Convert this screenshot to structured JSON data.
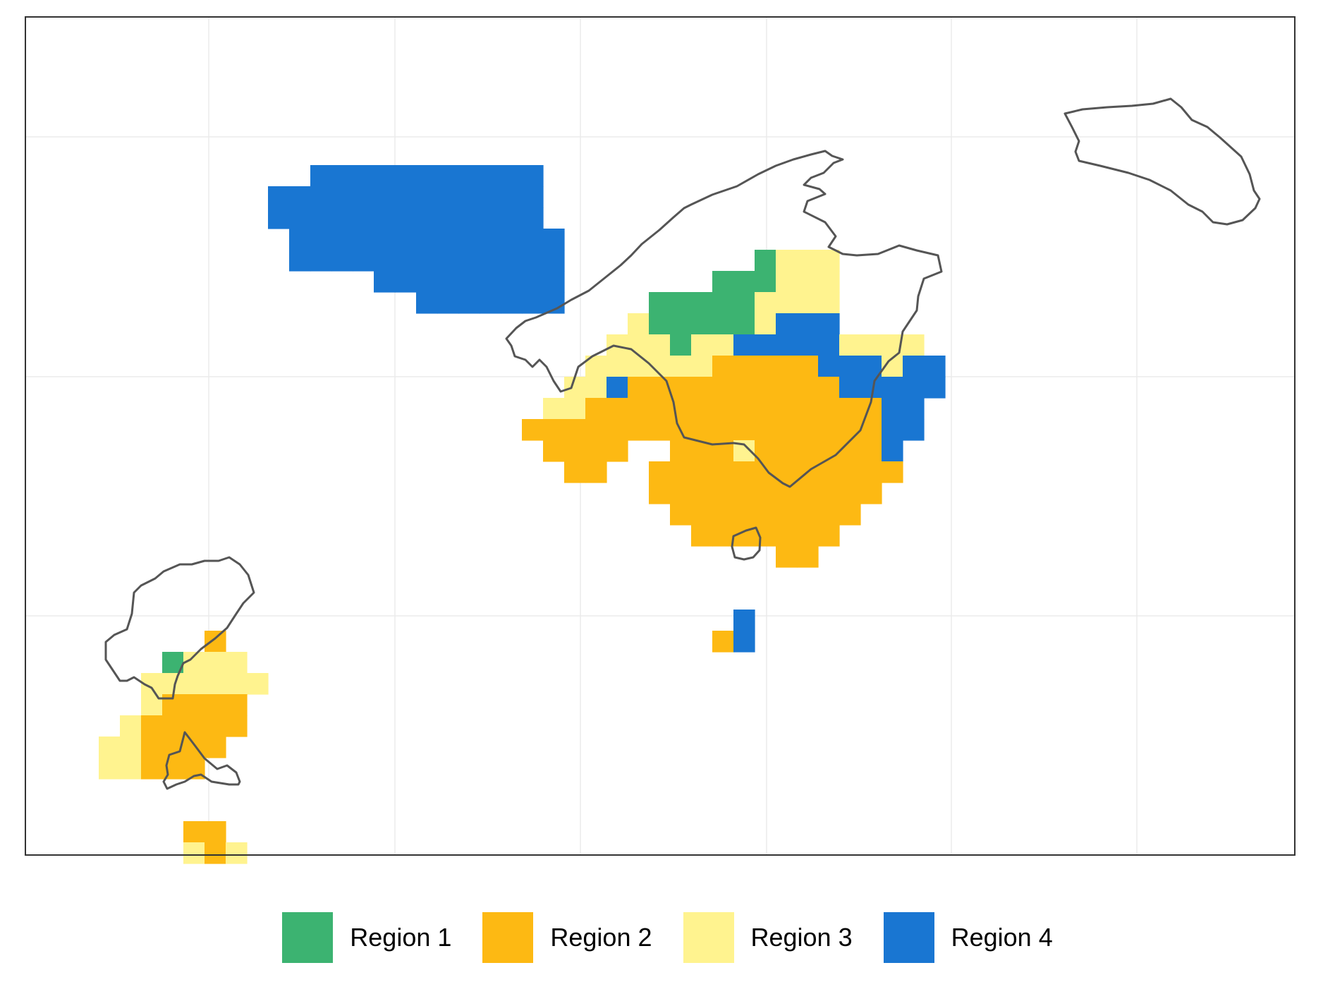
{
  "map": {
    "region_colors": {
      "1": "#3CB371",
      "2": "#FDB913",
      "3": "#FFF38F",
      "4": "#1976D2"
    },
    "outline_color": "#555555",
    "grid_color": "#ebebeb",
    "cells": [
      [
        14,
        7,
        4
      ],
      [
        15,
        7,
        4
      ],
      [
        16,
        7,
        4
      ],
      [
        17,
        7,
        4
      ],
      [
        18,
        7,
        4
      ],
      [
        19,
        7,
        4
      ],
      [
        20,
        7,
        4
      ],
      [
        21,
        7,
        4
      ],
      [
        22,
        7,
        4
      ],
      [
        23,
        7,
        4
      ],
      [
        24,
        7,
        4
      ],
      [
        12,
        8,
        4
      ],
      [
        13,
        8,
        4
      ],
      [
        14,
        8,
        4
      ],
      [
        15,
        8,
        4
      ],
      [
        16,
        8,
        4
      ],
      [
        17,
        8,
        4
      ],
      [
        18,
        8,
        4
      ],
      [
        19,
        8,
        4
      ],
      [
        20,
        8,
        4
      ],
      [
        21,
        8,
        4
      ],
      [
        22,
        8,
        4
      ],
      [
        23,
        8,
        4
      ],
      [
        24,
        8,
        4
      ],
      [
        12,
        9,
        4
      ],
      [
        13,
        9,
        4
      ],
      [
        14,
        9,
        4
      ],
      [
        15,
        9,
        4
      ],
      [
        16,
        9,
        4
      ],
      [
        17,
        9,
        4
      ],
      [
        18,
        9,
        4
      ],
      [
        19,
        9,
        4
      ],
      [
        20,
        9,
        4
      ],
      [
        21,
        9,
        4
      ],
      [
        22,
        9,
        4
      ],
      [
        23,
        9,
        4
      ],
      [
        24,
        9,
        4
      ],
      [
        13,
        10,
        4
      ],
      [
        14,
        10,
        4
      ],
      [
        15,
        10,
        4
      ],
      [
        16,
        10,
        4
      ],
      [
        17,
        10,
        4
      ],
      [
        18,
        10,
        4
      ],
      [
        19,
        10,
        4
      ],
      [
        20,
        10,
        4
      ],
      [
        21,
        10,
        4
      ],
      [
        22,
        10,
        4
      ],
      [
        23,
        10,
        4
      ],
      [
        24,
        10,
        4
      ],
      [
        25,
        10,
        4
      ],
      [
        13,
        11,
        4
      ],
      [
        14,
        11,
        4
      ],
      [
        15,
        11,
        4
      ],
      [
        16,
        11,
        4
      ],
      [
        17,
        11,
        4
      ],
      [
        18,
        11,
        4
      ],
      [
        19,
        11,
        4
      ],
      [
        20,
        11,
        4
      ],
      [
        21,
        11,
        4
      ],
      [
        22,
        11,
        4
      ],
      [
        23,
        11,
        4
      ],
      [
        24,
        11,
        4
      ],
      [
        25,
        11,
        4
      ],
      [
        17,
        12,
        4
      ],
      [
        18,
        12,
        4
      ],
      [
        19,
        12,
        4
      ],
      [
        20,
        12,
        4
      ],
      [
        21,
        12,
        4
      ],
      [
        22,
        12,
        4
      ],
      [
        23,
        12,
        4
      ],
      [
        24,
        12,
        4
      ],
      [
        25,
        12,
        4
      ],
      [
        19,
        13,
        4
      ],
      [
        20,
        13,
        4
      ],
      [
        21,
        13,
        4
      ],
      [
        22,
        13,
        4
      ],
      [
        23,
        13,
        4
      ],
      [
        24,
        13,
        4
      ],
      [
        25,
        13,
        4
      ],
      [
        35,
        11,
        1
      ],
      [
        36,
        11,
        3
      ],
      [
        37,
        11,
        3
      ],
      [
        38,
        11,
        3
      ],
      [
        33,
        12,
        1
      ],
      [
        34,
        12,
        1
      ],
      [
        35,
        12,
        1
      ],
      [
        36,
        12,
        3
      ],
      [
        37,
        12,
        3
      ],
      [
        38,
        12,
        3
      ],
      [
        30,
        13,
        1
      ],
      [
        31,
        13,
        1
      ],
      [
        32,
        13,
        1
      ],
      [
        33,
        13,
        1
      ],
      [
        34,
        13,
        1
      ],
      [
        35,
        13,
        3
      ],
      [
        36,
        13,
        3
      ],
      [
        37,
        13,
        3
      ],
      [
        38,
        13,
        3
      ],
      [
        29,
        14,
        3
      ],
      [
        30,
        14,
        1
      ],
      [
        31,
        14,
        1
      ],
      [
        32,
        14,
        1
      ],
      [
        33,
        14,
        1
      ],
      [
        34,
        14,
        1
      ],
      [
        35,
        14,
        3
      ],
      [
        36,
        14,
        4
      ],
      [
        37,
        14,
        4
      ],
      [
        38,
        14,
        4
      ],
      [
        28,
        15,
        3
      ],
      [
        29,
        15,
        3
      ],
      [
        30,
        15,
        3
      ],
      [
        31,
        15,
        1
      ],
      [
        32,
        15,
        3
      ],
      [
        33,
        15,
        3
      ],
      [
        34,
        15,
        4
      ],
      [
        35,
        15,
        4
      ],
      [
        36,
        15,
        4
      ],
      [
        37,
        15,
        4
      ],
      [
        38,
        15,
        4
      ],
      [
        39,
        15,
        3
      ],
      [
        40,
        15,
        3
      ],
      [
        41,
        15,
        3
      ],
      [
        42,
        15,
        3
      ],
      [
        27,
        16,
        3
      ],
      [
        28,
        16,
        3
      ],
      [
        29,
        16,
        3
      ],
      [
        30,
        16,
        3
      ],
      [
        31,
        16,
        3
      ],
      [
        32,
        16,
        3
      ],
      [
        33,
        16,
        2
      ],
      [
        34,
        16,
        2
      ],
      [
        35,
        16,
        2
      ],
      [
        36,
        16,
        2
      ],
      [
        37,
        16,
        2
      ],
      [
        38,
        16,
        4
      ],
      [
        39,
        16,
        4
      ],
      [
        40,
        16,
        4
      ],
      [
        41,
        16,
        3
      ],
      [
        42,
        16,
        4
      ],
      [
        43,
        16,
        4
      ],
      [
        26,
        17,
        3
      ],
      [
        27,
        17,
        3
      ],
      [
        28,
        17,
        4
      ],
      [
        29,
        17,
        2
      ],
      [
        30,
        17,
        2
      ],
      [
        31,
        17,
        2
      ],
      [
        32,
        17,
        2
      ],
      [
        33,
        17,
        2
      ],
      [
        34,
        17,
        2
      ],
      [
        35,
        17,
        2
      ],
      [
        36,
        17,
        2
      ],
      [
        37,
        17,
        2
      ],
      [
        38,
        17,
        2
      ],
      [
        39,
        17,
        4
      ],
      [
        40,
        17,
        4
      ],
      [
        41,
        17,
        4
      ],
      [
        42,
        17,
        4
      ],
      [
        43,
        17,
        4
      ],
      [
        25,
        18,
        3
      ],
      [
        26,
        18,
        3
      ],
      [
        27,
        18,
        2
      ],
      [
        28,
        18,
        2
      ],
      [
        29,
        18,
        2
      ],
      [
        30,
        18,
        2
      ],
      [
        31,
        18,
        2
      ],
      [
        32,
        18,
        2
      ],
      [
        33,
        18,
        2
      ],
      [
        34,
        18,
        2
      ],
      [
        35,
        18,
        2
      ],
      [
        36,
        18,
        2
      ],
      [
        37,
        18,
        2
      ],
      [
        38,
        18,
        2
      ],
      [
        39,
        18,
        2
      ],
      [
        40,
        18,
        2
      ],
      [
        41,
        18,
        4
      ],
      [
        42,
        18,
        4
      ],
      [
        24,
        19,
        2
      ],
      [
        25,
        19,
        2
      ],
      [
        26,
        19,
        2
      ],
      [
        27,
        19,
        2
      ],
      [
        28,
        19,
        2
      ],
      [
        29,
        19,
        2
      ],
      [
        30,
        19,
        2
      ],
      [
        31,
        19,
        2
      ],
      [
        32,
        19,
        2
      ],
      [
        33,
        19,
        2
      ],
      [
        34,
        19,
        2
      ],
      [
        35,
        19,
        2
      ],
      [
        36,
        19,
        2
      ],
      [
        37,
        19,
        2
      ],
      [
        38,
        19,
        2
      ],
      [
        39,
        19,
        2
      ],
      [
        40,
        19,
        2
      ],
      [
        41,
        19,
        4
      ],
      [
        42,
        19,
        4
      ],
      [
        25,
        20,
        2
      ],
      [
        26,
        20,
        2
      ],
      [
        27,
        20,
        2
      ],
      [
        28,
        20,
        2
      ],
      [
        31,
        20,
        2
      ],
      [
        32,
        20,
        2
      ],
      [
        33,
        20,
        2
      ],
      [
        34,
        20,
        3
      ],
      [
        35,
        20,
        2
      ],
      [
        36,
        20,
        2
      ],
      [
        37,
        20,
        2
      ],
      [
        38,
        20,
        2
      ],
      [
        39,
        20,
        2
      ],
      [
        40,
        20,
        2
      ],
      [
        41,
        20,
        4
      ],
      [
        26,
        21,
        2
      ],
      [
        27,
        21,
        2
      ],
      [
        30,
        21,
        2
      ],
      [
        31,
        21,
        2
      ],
      [
        32,
        21,
        2
      ],
      [
        33,
        21,
        2
      ],
      [
        34,
        21,
        2
      ],
      [
        35,
        21,
        2
      ],
      [
        36,
        21,
        2
      ],
      [
        37,
        21,
        2
      ],
      [
        38,
        21,
        2
      ],
      [
        39,
        21,
        2
      ],
      [
        40,
        21,
        2
      ],
      [
        41,
        21,
        2
      ],
      [
        30,
        22,
        2
      ],
      [
        31,
        22,
        2
      ],
      [
        32,
        22,
        2
      ],
      [
        33,
        22,
        2
      ],
      [
        34,
        22,
        2
      ],
      [
        35,
        22,
        2
      ],
      [
        36,
        22,
        2
      ],
      [
        37,
        22,
        2
      ],
      [
        38,
        22,
        2
      ],
      [
        39,
        22,
        2
      ],
      [
        40,
        22,
        2
      ],
      [
        31,
        23,
        2
      ],
      [
        32,
        23,
        2
      ],
      [
        33,
        23,
        2
      ],
      [
        34,
        23,
        2
      ],
      [
        35,
        23,
        2
      ],
      [
        36,
        23,
        2
      ],
      [
        37,
        23,
        2
      ],
      [
        38,
        23,
        2
      ],
      [
        39,
        23,
        2
      ],
      [
        32,
        24,
        2
      ],
      [
        33,
        24,
        2
      ],
      [
        34,
        24,
        2
      ],
      [
        35,
        24,
        2
      ],
      [
        36,
        24,
        2
      ],
      [
        37,
        24,
        2
      ],
      [
        38,
        24,
        2
      ],
      [
        36,
        25,
        2
      ],
      [
        37,
        25,
        2
      ],
      [
        34,
        28,
        4
      ],
      [
        33,
        29,
        2
      ],
      [
        34,
        29,
        4
      ],
      [
        9,
        29,
        2
      ],
      [
        7,
        30,
        1
      ],
      [
        8,
        30,
        3
      ],
      [
        9,
        30,
        3
      ],
      [
        10,
        30,
        3
      ],
      [
        6,
        31,
        3
      ],
      [
        7,
        31,
        3
      ],
      [
        8,
        31,
        3
      ],
      [
        9,
        31,
        3
      ],
      [
        10,
        31,
        3
      ],
      [
        11,
        31,
        3
      ],
      [
        6,
        32,
        3
      ],
      [
        7,
        32,
        2
      ],
      [
        8,
        32,
        2
      ],
      [
        9,
        32,
        2
      ],
      [
        10,
        32,
        2
      ],
      [
        5,
        33,
        3
      ],
      [
        6,
        33,
        2
      ],
      [
        7,
        33,
        2
      ],
      [
        8,
        33,
        2
      ],
      [
        9,
        33,
        2
      ],
      [
        10,
        33,
        2
      ],
      [
        4,
        34,
        3
      ],
      [
        5,
        34,
        3
      ],
      [
        6,
        34,
        2
      ],
      [
        7,
        34,
        2
      ],
      [
        8,
        34,
        2
      ],
      [
        9,
        34,
        2
      ],
      [
        4,
        35,
        3
      ],
      [
        5,
        35,
        3
      ],
      [
        6,
        35,
        2
      ],
      [
        7,
        35,
        2
      ],
      [
        8,
        35,
        2
      ],
      [
        8,
        38,
        2
      ],
      [
        9,
        38,
        2
      ],
      [
        8,
        39,
        3
      ],
      [
        9,
        39,
        2
      ],
      [
        10,
        39,
        3
      ]
    ]
  },
  "legend": {
    "items": [
      {
        "label": "Region 1",
        "color": "#3CB371"
      },
      {
        "label": "Region 2",
        "color": "#FDB913"
      },
      {
        "label": "Region 3",
        "color": "#FFF38F"
      },
      {
        "label": "Region 4",
        "color": "#1976D2"
      }
    ]
  }
}
